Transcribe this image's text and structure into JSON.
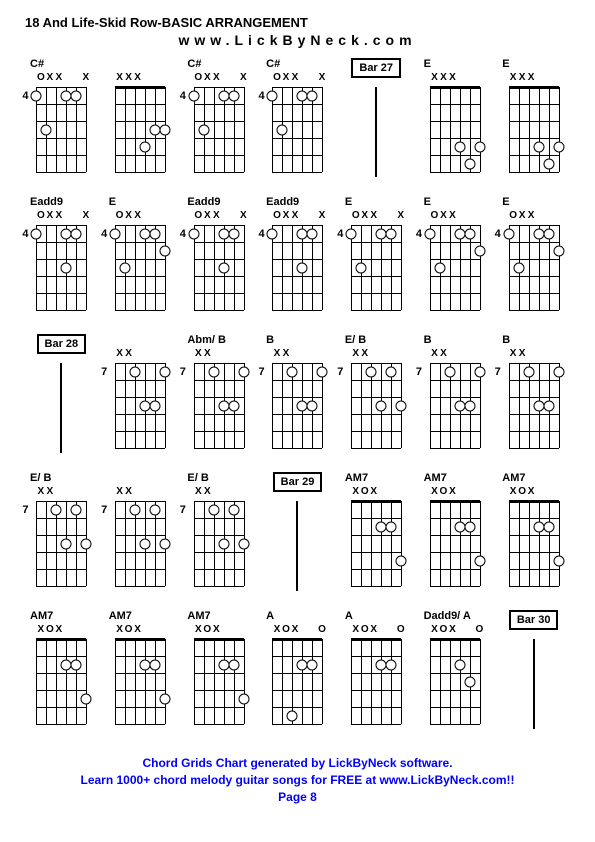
{
  "title": "18 And Life-Skid Row-BASIC ARRANGEMENT",
  "subtitle": "www.LickByNeck.com",
  "footer": {
    "line1": "Chord Grids Chart generated by LickByNeck software.",
    "line2": "Learn 1000+ chord melody guitar songs for FREE at www.LickByNeck.com!!",
    "line3": "Page 8"
  },
  "grid_cols": 7,
  "fretboard": {
    "strings": 6,
    "frets": 5,
    "width": 50,
    "height": 85
  },
  "cells": [
    {
      "type": "chord",
      "label": "C#",
      "fret": "4",
      "mutes": [
        "O",
        "X",
        "X",
        "",
        "",
        "X"
      ],
      "dots": [
        [
          0,
          0.5
        ],
        [
          3,
          0.5
        ],
        [
          4,
          0.5
        ],
        [
          1,
          2.5
        ]
      ]
    },
    {
      "type": "chord",
      "label": "",
      "fret": "",
      "mutes": [
        "X",
        "X",
        "X",
        "",
        "",
        ""
      ],
      "dots": [
        [
          3,
          3.5
        ],
        [
          4,
          2.5
        ],
        [
          5,
          2.5
        ]
      ]
    },
    {
      "type": "chord",
      "label": "C#",
      "fret": "4",
      "mutes": [
        "O",
        "X",
        "X",
        "",
        "",
        "X"
      ],
      "dots": [
        [
          0,
          0.5
        ],
        [
          3,
          0.5
        ],
        [
          4,
          0.5
        ],
        [
          1,
          2.5
        ]
      ]
    },
    {
      "type": "chord",
      "label": "C#",
      "fret": "4",
      "mutes": [
        "O",
        "X",
        "X",
        "",
        "",
        "X"
      ],
      "dots": [
        [
          0,
          0.5
        ],
        [
          3,
          0.5
        ],
        [
          4,
          0.5
        ],
        [
          1,
          2.5
        ]
      ]
    },
    {
      "type": "bar",
      "label": "Bar 27"
    },
    {
      "type": "chord",
      "label": "E",
      "fret": "",
      "mutes": [
        "X",
        "X",
        "X",
        "",
        "",
        ""
      ],
      "dots": [
        [
          3,
          3.5
        ],
        [
          4,
          4.5
        ],
        [
          5,
          3.5
        ]
      ]
    },
    {
      "type": "chord",
      "label": "E",
      "fret": "",
      "mutes": [
        "X",
        "X",
        "X",
        "",
        "",
        ""
      ],
      "dots": [
        [
          3,
          3.5
        ],
        [
          4,
          4.5
        ],
        [
          5,
          3.5
        ]
      ]
    },
    {
      "type": "chord",
      "label": "Eadd9",
      "fret": "4",
      "mutes": [
        "O",
        "X",
        "X",
        "",
        "",
        "X"
      ],
      "dots": [
        [
          0,
          0.5
        ],
        [
          3,
          0.5
        ],
        [
          4,
          0.5
        ],
        [
          3,
          2.5
        ]
      ]
    },
    {
      "type": "chord",
      "label": "E",
      "fret": "4",
      "mutes": [
        "O",
        "X",
        "X",
        "",
        "",
        ""
      ],
      "dots": [
        [
          0,
          0.5
        ],
        [
          3,
          0.5
        ],
        [
          4,
          0.5
        ],
        [
          1,
          2.5
        ],
        [
          5,
          1.5
        ]
      ]
    },
    {
      "type": "chord",
      "label": "Eadd9",
      "fret": "4",
      "mutes": [
        "O",
        "X",
        "X",
        "",
        "",
        "X"
      ],
      "dots": [
        [
          0,
          0.5
        ],
        [
          3,
          0.5
        ],
        [
          4,
          0.5
        ],
        [
          3,
          2.5
        ]
      ]
    },
    {
      "type": "chord",
      "label": "Eadd9",
      "fret": "4",
      "mutes": [
        "O",
        "X",
        "X",
        "",
        "",
        "X"
      ],
      "dots": [
        [
          0,
          0.5
        ],
        [
          3,
          0.5
        ],
        [
          4,
          0.5
        ],
        [
          3,
          2.5
        ]
      ]
    },
    {
      "type": "chord",
      "label": "E",
      "fret": "4",
      "mutes": [
        "O",
        "X",
        "X",
        "",
        "",
        "X"
      ],
      "dots": [
        [
          0,
          0.5
        ],
        [
          3,
          0.5
        ],
        [
          4,
          0.5
        ],
        [
          1,
          2.5
        ]
      ]
    },
    {
      "type": "chord",
      "label": "E",
      "fret": "4",
      "mutes": [
        "O",
        "X",
        "X",
        "",
        "",
        ""
      ],
      "dots": [
        [
          0,
          0.5
        ],
        [
          3,
          0.5
        ],
        [
          4,
          0.5
        ],
        [
          1,
          2.5
        ],
        [
          5,
          1.5
        ]
      ]
    },
    {
      "type": "chord",
      "label": "E",
      "fret": "4",
      "mutes": [
        "O",
        "X",
        "X",
        "",
        "",
        ""
      ],
      "dots": [
        [
          0,
          0.5
        ],
        [
          3,
          0.5
        ],
        [
          4,
          0.5
        ],
        [
          1,
          2.5
        ],
        [
          5,
          1.5
        ]
      ]
    },
    {
      "type": "bar",
      "label": "Bar 28"
    },
    {
      "type": "chord",
      "label": "",
      "fret": "7",
      "mutes": [
        "X",
        "X",
        "",
        "",
        "",
        ""
      ],
      "dots": [
        [
          2,
          0.5
        ],
        [
          3,
          2.5
        ],
        [
          4,
          2.5
        ],
        [
          5,
          0.5
        ]
      ]
    },
    {
      "type": "chord",
      "label": "Abm/ B",
      "fret": "7",
      "mutes": [
        "X",
        "X",
        "",
        "",
        "",
        ""
      ],
      "dots": [
        [
          2,
          0.5
        ],
        [
          3,
          2.5
        ],
        [
          4,
          2.5
        ],
        [
          5,
          0.5
        ]
      ]
    },
    {
      "type": "chord",
      "label": "B",
      "fret": "7",
      "mutes": [
        "X",
        "X",
        "",
        "",
        "",
        ""
      ],
      "dots": [
        [
          2,
          0.5
        ],
        [
          3,
          2.5
        ],
        [
          4,
          2.5
        ],
        [
          5,
          0.5
        ]
      ]
    },
    {
      "type": "chord",
      "label": "E/ B",
      "fret": "7",
      "mutes": [
        "X",
        "X",
        "",
        "",
        "",
        ""
      ],
      "dots": [
        [
          2,
          0.5
        ],
        [
          3,
          2.5
        ],
        [
          4,
          0.5
        ],
        [
          5,
          2.5
        ]
      ]
    },
    {
      "type": "chord",
      "label": "B",
      "fret": "7",
      "mutes": [
        "X",
        "X",
        "",
        "",
        "",
        ""
      ],
      "dots": [
        [
          2,
          0.5
        ],
        [
          3,
          2.5
        ],
        [
          4,
          2.5
        ],
        [
          5,
          0.5
        ]
      ]
    },
    {
      "type": "chord",
      "label": "B",
      "fret": "7",
      "mutes": [
        "X",
        "X",
        "",
        "",
        "",
        ""
      ],
      "dots": [
        [
          2,
          0.5
        ],
        [
          3,
          2.5
        ],
        [
          4,
          2.5
        ],
        [
          5,
          0.5
        ]
      ]
    },
    {
      "type": "chord",
      "label": "E/ B",
      "fret": "7",
      "mutes": [
        "X",
        "X",
        "",
        "",
        "",
        ""
      ],
      "dots": [
        [
          2,
          0.5
        ],
        [
          3,
          2.5
        ],
        [
          4,
          0.5
        ],
        [
          5,
          2.5
        ]
      ]
    },
    {
      "type": "chord",
      "label": "",
      "fret": "7",
      "mutes": [
        "X",
        "X",
        "",
        "",
        "",
        ""
      ],
      "dots": [
        [
          2,
          0.5
        ],
        [
          3,
          2.5
        ],
        [
          4,
          0.5
        ],
        [
          5,
          2.5
        ]
      ]
    },
    {
      "type": "chord",
      "label": "E/ B",
      "fret": "7",
      "mutes": [
        "X",
        "X",
        "",
        "",
        "",
        ""
      ],
      "dots": [
        [
          2,
          0.5
        ],
        [
          3,
          2.5
        ],
        [
          4,
          0.5
        ],
        [
          5,
          2.5
        ]
      ]
    },
    {
      "type": "bar",
      "label": "Bar 29"
    },
    {
      "type": "chord",
      "label": "AM7",
      "fret": "",
      "mutes": [
        "X",
        "O",
        "X",
        "",
        "",
        ""
      ],
      "dots": [
        [
          3,
          1.5
        ],
        [
          4,
          1.5
        ],
        [
          5,
          3.5
        ]
      ]
    },
    {
      "type": "chord",
      "label": "AM7",
      "fret": "",
      "mutes": [
        "X",
        "O",
        "X",
        "",
        "",
        ""
      ],
      "dots": [
        [
          3,
          1.5
        ],
        [
          4,
          1.5
        ],
        [
          5,
          3.5
        ]
      ]
    },
    {
      "type": "chord",
      "label": "AM7",
      "fret": "",
      "mutes": [
        "X",
        "O",
        "X",
        "",
        "",
        ""
      ],
      "dots": [
        [
          3,
          1.5
        ],
        [
          4,
          1.5
        ],
        [
          5,
          3.5
        ]
      ]
    },
    {
      "type": "chord",
      "label": "AM7",
      "fret": "",
      "mutes": [
        "X",
        "O",
        "X",
        "",
        "",
        ""
      ],
      "dots": [
        [
          3,
          1.5
        ],
        [
          4,
          1.5
        ],
        [
          5,
          3.5
        ]
      ]
    },
    {
      "type": "chord",
      "label": "AM7",
      "fret": "",
      "mutes": [
        "X",
        "O",
        "X",
        "",
        "",
        ""
      ],
      "dots": [
        [
          3,
          1.5
        ],
        [
          4,
          1.5
        ],
        [
          5,
          3.5
        ]
      ]
    },
    {
      "type": "chord",
      "label": "AM7",
      "fret": "",
      "mutes": [
        "X",
        "O",
        "X",
        "",
        "",
        ""
      ],
      "dots": [
        [
          3,
          1.5
        ],
        [
          4,
          1.5
        ],
        [
          5,
          3.5
        ]
      ]
    },
    {
      "type": "chord",
      "label": "A",
      "fret": "",
      "mutes": [
        "X",
        "O",
        "X",
        "",
        "",
        "O"
      ],
      "dots": [
        [
          3,
          1.5
        ],
        [
          4,
          1.5
        ],
        [
          2,
          4.5
        ]
      ]
    },
    {
      "type": "chord",
      "label": "A",
      "fret": "",
      "mutes": [
        "X",
        "O",
        "X",
        "",
        "",
        "O"
      ],
      "dots": [
        [
          3,
          1.5
        ],
        [
          4,
          1.5
        ]
      ]
    },
    {
      "type": "chord",
      "label": "Dadd9/ A",
      "fret": "",
      "mutes": [
        "X",
        "O",
        "X",
        "",
        "",
        "O"
      ],
      "dots": [
        [
          3,
          1.5
        ],
        [
          4,
          2.5
        ]
      ]
    },
    {
      "type": "bar",
      "label": "Bar 30"
    }
  ]
}
